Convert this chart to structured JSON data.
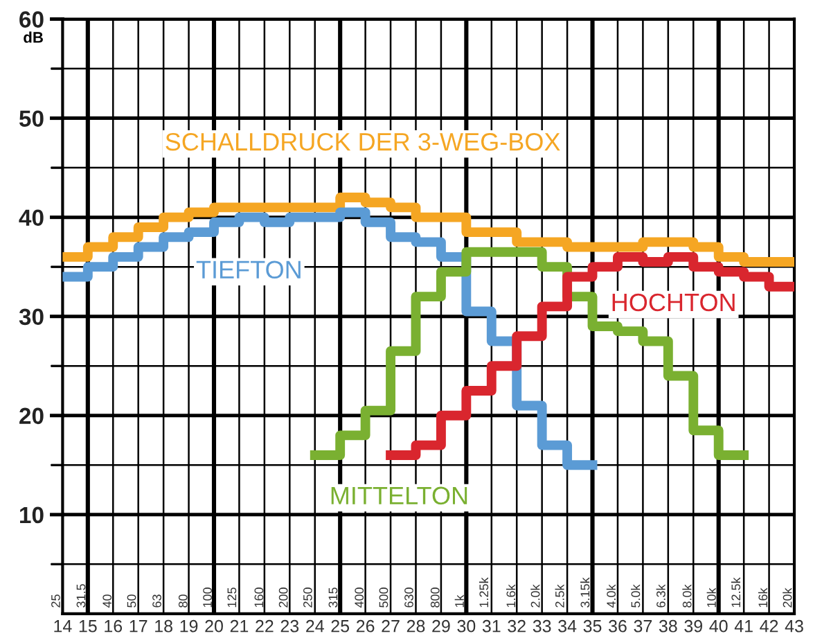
{
  "chart_data": {
    "type": "step",
    "ylabel": "dB",
    "xlim": [
      14,
      43
    ],
    "xticks": [
      14,
      15,
      16,
      17,
      18,
      19,
      20,
      21,
      22,
      23,
      24,
      25,
      26,
      27,
      28,
      29,
      30,
      31,
      32,
      33,
      34,
      35,
      36,
      37,
      38,
      39,
      40,
      41,
      42,
      43
    ],
    "x2lim": [
      25,
      20000
    ],
    "log": "x2",
    "x2ticks": [
      25,
      31.5,
      40,
      50,
      63,
      80,
      100,
      125,
      160,
      200,
      250,
      315,
      400,
      500,
      630,
      800,
      {
        "value": 1000,
        "label": "1k"
      },
      {
        "value": 1250,
        "label": "1.25k"
      },
      {
        "value": 1600,
        "label": "1.6k"
      },
      {
        "value": 2000,
        "label": "2.0k"
      },
      {
        "value": 2500,
        "label": "2.5k"
      },
      {
        "value": 3150,
        "label": "3.15k"
      },
      {
        "value": 4000,
        "label": "4.0k"
      },
      {
        "value": 5000,
        "label": "5.0k"
      },
      {
        "value": 6300,
        "label": "6.3k"
      },
      {
        "value": 8000,
        "label": "8.0k"
      },
      {
        "value": 10000,
        "label": "10k"
      },
      {
        "value": 12500,
        "label": "12.5k"
      },
      {
        "value": 16000,
        "label": "16k"
      },
      {
        "value": 20000,
        "label": "20k"
      }
    ],
    "ylim": [
      0,
      60
    ],
    "yticks": [
      {
        "value": 5,
        "label": null
      },
      10,
      {
        "value": 15,
        "label": null
      },
      20,
      {
        "value": 25,
        "label": null
      },
      30,
      {
        "value": 35,
        "label": null
      },
      40,
      {
        "value": 45,
        "label": null
      },
      50,
      {
        "value": 55,
        "label": null
      },
      60
    ],
    "grid": true,
    "series": [
      {
        "name": "SCHALLDRUCK DER 3-WEG-BOX",
        "color": "#f5a623",
        "x": [
          14,
          15,
          16,
          17,
          18,
          19,
          20,
          21,
          22,
          23,
          24,
          25,
          26,
          27,
          28,
          29,
          30,
          31,
          32,
          33,
          34,
          35,
          36,
          37,
          38,
          39,
          40,
          41,
          42,
          43
        ],
        "values": [
          36,
          37,
          38,
          39,
          40,
          40.5,
          41,
          41,
          41,
          41,
          41,
          42,
          41.5,
          41,
          40,
          40,
          38.5,
          38.5,
          37.5,
          37.5,
          37,
          37,
          37,
          37.5,
          37.5,
          37,
          36,
          35.5,
          35.5,
          35.5
        ]
      },
      {
        "name": "TIEFTON",
        "color": "#5b9bd5",
        "x": [
          14,
          15,
          16,
          17,
          18,
          19,
          20,
          21,
          22,
          23,
          24,
          25,
          26,
          27,
          28,
          29,
          30,
          31,
          32,
          33,
          34,
          35
        ],
        "values": [
          34,
          35,
          36,
          37,
          38,
          38.5,
          39.5,
          40,
          39.5,
          40,
          40,
          40.5,
          39.5,
          38,
          37.5,
          36,
          30.5,
          27.5,
          21,
          17,
          15,
          15
        ]
      },
      {
        "name": "MITTELTON",
        "color": "#7ab031",
        "x": [
          24,
          25,
          26,
          27,
          28,
          29,
          30,
          31,
          32,
          33,
          34,
          35,
          36,
          37,
          38,
          39,
          40,
          41
        ],
        "values": [
          16,
          18,
          20.5,
          26.5,
          32,
          34.5,
          36.5,
          36.5,
          36.5,
          35,
          32,
          29,
          28.5,
          27.5,
          24,
          18.5,
          16,
          16
        ]
      },
      {
        "name": "HOCHTON",
        "color": "#d9262e",
        "x": [
          27,
          28,
          29,
          30,
          31,
          32,
          33,
          34,
          35,
          36,
          37,
          38,
          39,
          40,
          41,
          42,
          43
        ],
        "values": [
          16,
          17,
          20,
          22.5,
          25,
          28,
          31,
          34,
          35,
          36,
          35.5,
          36,
          35,
          34.5,
          34,
          33,
          33
        ]
      }
    ]
  }
}
